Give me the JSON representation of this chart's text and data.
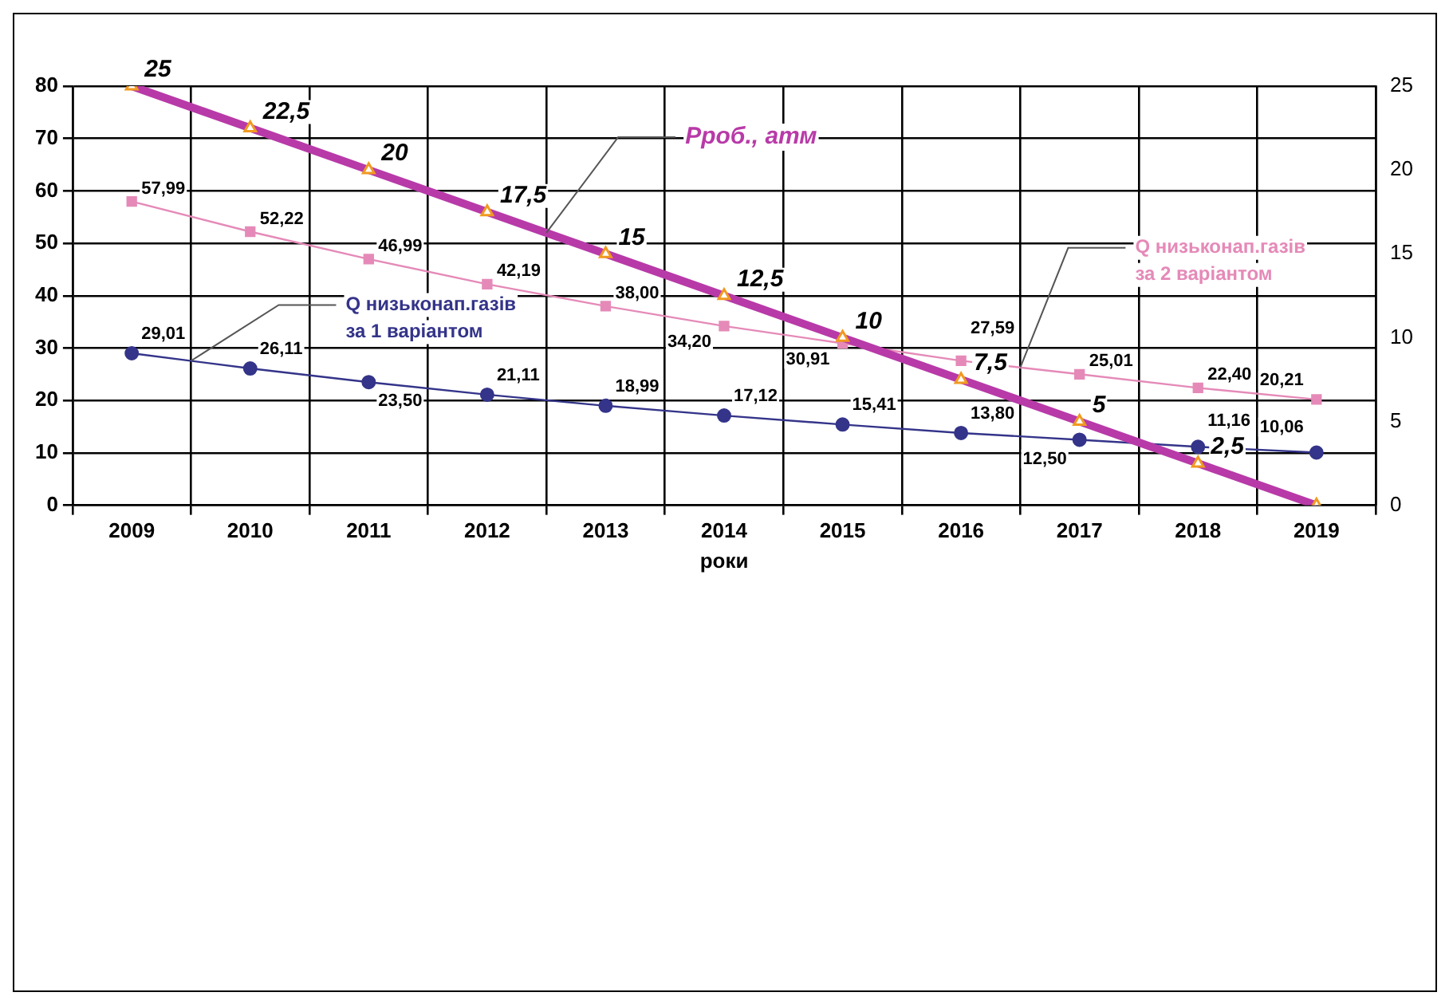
{
  "chart_data": {
    "type": "line",
    "xlabel": "роки",
    "categories": [
      "2009",
      "2010",
      "2011",
      "2012",
      "2013",
      "2014",
      "2015",
      "2016",
      "2017",
      "2018",
      "2019"
    ],
    "ylim": [
      0,
      80
    ],
    "yticks": [
      0,
      10,
      20,
      30,
      40,
      50,
      60,
      70,
      80
    ],
    "y2lim": [
      0,
      25
    ],
    "y2ticks": [
      0,
      5,
      10,
      15,
      20,
      25
    ],
    "grid": true,
    "legend": false,
    "line_style": "solid",
    "series": [
      {
        "name": "Рроб., атм",
        "color": "#b83aa8",
        "axis": "y2",
        "marker": "triangle",
        "values": [
          25,
          22.5,
          20,
          17.5,
          15,
          12.5,
          10,
          7.5,
          5,
          2.5,
          0
        ],
        "value_labels": [
          "25",
          "22,5",
          "20",
          "17,5",
          "15",
          "12,5",
          "10",
          "7,5",
          "5",
          "2,5",
          null
        ]
      },
      {
        "name": "Q низьконап.газів за 2 варіантом",
        "color": "#e58ab8",
        "marker": "square",
        "values": [
          57.99,
          52.22,
          46.99,
          42.19,
          38.0,
          34.2,
          30.91,
          27.59,
          25.01,
          22.4,
          20.21
        ],
        "value_labels": [
          "57,99",
          "52,22",
          "46,99",
          "42,19",
          "38,00",
          "34,20",
          "30,91",
          "27,59",
          "25,01",
          "22,40",
          "20,21"
        ]
      },
      {
        "name": "Q низьконап.газів за 1 варіантом",
        "color": "#34348a",
        "marker": "circle",
        "values": [
          29.01,
          26.11,
          23.5,
          21.11,
          18.99,
          17.12,
          15.41,
          13.8,
          12.5,
          11.16,
          10.06
        ],
        "value_labels": [
          "29,01",
          "26,11",
          "23,50",
          "21,11",
          "18,99",
          "17,12",
          "15,41",
          "13,80",
          "12,50",
          "11,16",
          "10,06"
        ]
      }
    ]
  }
}
